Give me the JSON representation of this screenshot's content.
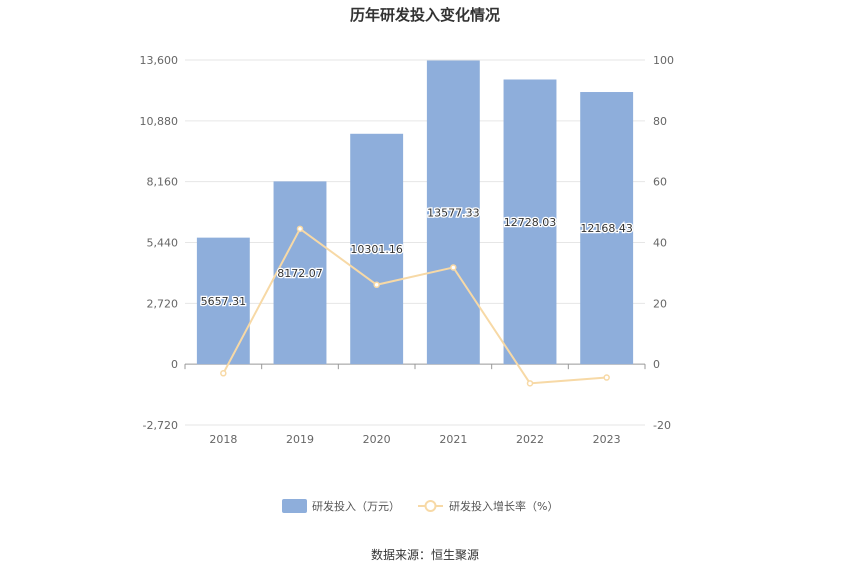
{
  "chart_data": {
    "type": "bar",
    "title": "历年研发投入变化情况",
    "categories": [
      "2018",
      "2019",
      "2020",
      "2021",
      "2022",
      "2023"
    ],
    "series": [
      {
        "name": "研发投入（万元）",
        "type": "bar",
        "axis": "left",
        "values": [
          5657.31,
          8172.07,
          10301.16,
          13577.33,
          12728.03,
          12168.43
        ],
        "labels": [
          "5657.31",
          "8172.07",
          "10301.16",
          "13577.33",
          "12728.03",
          "12168.43"
        ]
      },
      {
        "name": "研发投入增长率（%）",
        "type": "line",
        "axis": "right",
        "values": [
          -3.0,
          44.5,
          26.1,
          31.8,
          -6.3,
          -4.4
        ]
      }
    ],
    "y_left": {
      "ylim": [
        -2720,
        13600
      ],
      "ticks": [
        -2720,
        0,
        2720,
        5440,
        8160,
        10880,
        13600
      ],
      "tick_labels": [
        "-2,720",
        "0",
        "2,720",
        "5,440",
        "8,160",
        "10,880",
        "13,600"
      ]
    },
    "y_right": {
      "ylim": [
        -20,
        100
      ],
      "ticks": [
        -20,
        0,
        20,
        40,
        60,
        80,
        100
      ],
      "tick_labels": [
        "-20",
        "0",
        "20",
        "40",
        "60",
        "80",
        "100"
      ]
    },
    "grid": true,
    "legend_position": "bottom",
    "colors": {
      "bar": "#8eaedb",
      "line": "#f7d9a6",
      "grid": "#e6e6e6",
      "axis": "#999999"
    }
  },
  "source": "数据来源：恒生聚源"
}
